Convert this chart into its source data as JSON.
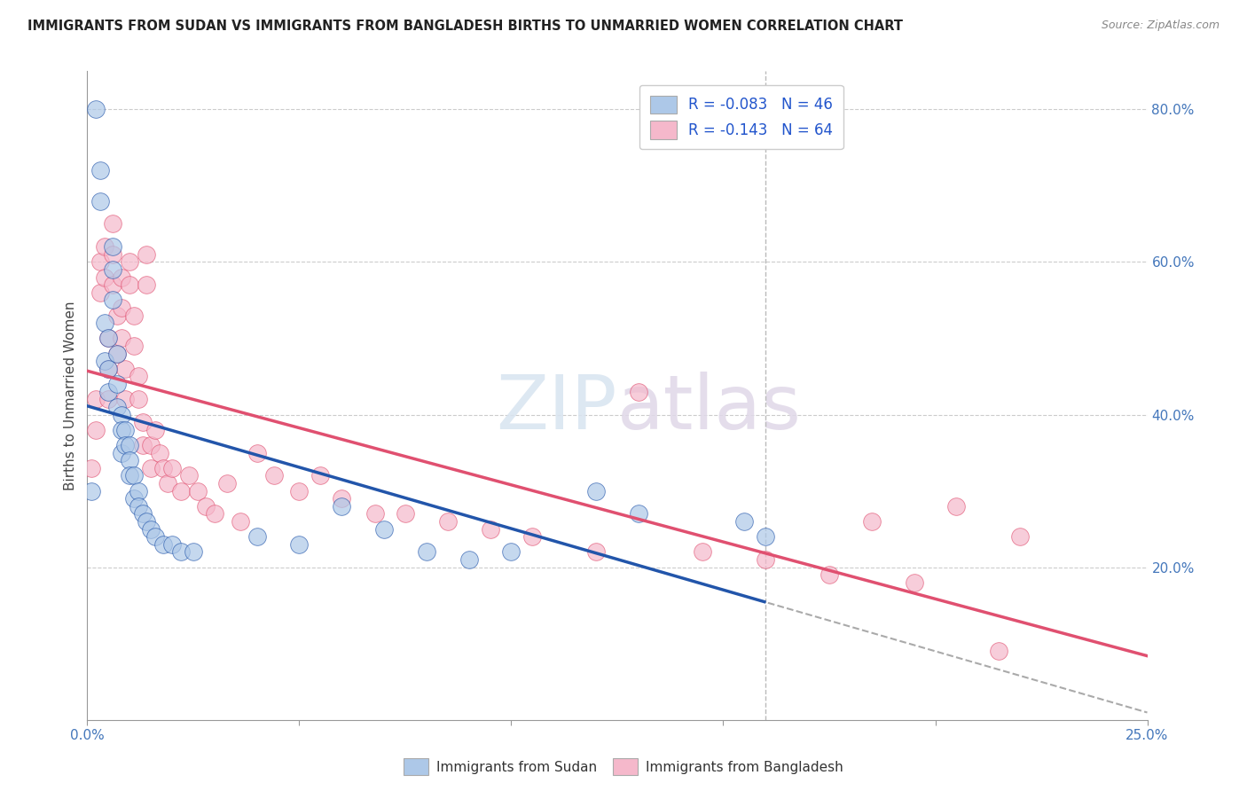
{
  "title": "IMMIGRANTS FROM SUDAN VS IMMIGRANTS FROM BANGLADESH BIRTHS TO UNMARRIED WOMEN CORRELATION CHART",
  "source": "Source: ZipAtlas.com",
  "ylabel": "Births to Unmarried Women",
  "xlim": [
    0.0,
    0.25
  ],
  "ylim": [
    0.0,
    0.85
  ],
  "xtick_values": [
    0.0,
    0.05,
    0.1,
    0.15,
    0.2,
    0.25
  ],
  "xtick_edge_labels_only": [
    "0.0%",
    "",
    "",
    "",
    "",
    "25.0%"
  ],
  "ytick_labels": [
    "20.0%",
    "40.0%",
    "60.0%",
    "80.0%"
  ],
  "ytick_values": [
    0.2,
    0.4,
    0.6,
    0.8
  ],
  "legend_r_sudan": "-0.083",
  "legend_n_sudan": "46",
  "legend_r_bangladesh": "-0.143",
  "legend_n_bangladesh": "64",
  "color_sudan": "#adc8e8",
  "color_bangladesh": "#f5b8cb",
  "line_color_sudan": "#2255aa",
  "line_color_bangladesh": "#e05070",
  "sudan_line_end_x": 0.13,
  "sudan_x": [
    0.001,
    0.002,
    0.003,
    0.003,
    0.004,
    0.004,
    0.005,
    0.005,
    0.005,
    0.006,
    0.006,
    0.006,
    0.007,
    0.007,
    0.007,
    0.008,
    0.008,
    0.008,
    0.009,
    0.009,
    0.01,
    0.01,
    0.01,
    0.011,
    0.011,
    0.012,
    0.012,
    0.013,
    0.014,
    0.015,
    0.016,
    0.018,
    0.02,
    0.022,
    0.025,
    0.04,
    0.05,
    0.06,
    0.07,
    0.08,
    0.09,
    0.1,
    0.12,
    0.13,
    0.155,
    0.16
  ],
  "sudan_y": [
    0.3,
    0.8,
    0.72,
    0.68,
    0.52,
    0.47,
    0.5,
    0.46,
    0.43,
    0.62,
    0.59,
    0.55,
    0.48,
    0.44,
    0.41,
    0.4,
    0.38,
    0.35,
    0.38,
    0.36,
    0.36,
    0.34,
    0.32,
    0.32,
    0.29,
    0.3,
    0.28,
    0.27,
    0.26,
    0.25,
    0.24,
    0.23,
    0.23,
    0.22,
    0.22,
    0.24,
    0.23,
    0.28,
    0.25,
    0.22,
    0.21,
    0.22,
    0.3,
    0.27,
    0.26,
    0.24
  ],
  "bangladesh_x": [
    0.001,
    0.002,
    0.002,
    0.003,
    0.003,
    0.004,
    0.004,
    0.005,
    0.005,
    0.005,
    0.006,
    0.006,
    0.006,
    0.007,
    0.007,
    0.008,
    0.008,
    0.008,
    0.009,
    0.009,
    0.01,
    0.01,
    0.011,
    0.011,
    0.012,
    0.012,
    0.013,
    0.013,
    0.014,
    0.014,
    0.015,
    0.015,
    0.016,
    0.017,
    0.018,
    0.019,
    0.02,
    0.022,
    0.024,
    0.026,
    0.028,
    0.03,
    0.033,
    0.036,
    0.04,
    0.044,
    0.05,
    0.055,
    0.06,
    0.068,
    0.075,
    0.085,
    0.095,
    0.105,
    0.12,
    0.13,
    0.145,
    0.16,
    0.175,
    0.185,
    0.195,
    0.205,
    0.215,
    0.22
  ],
  "bangladesh_y": [
    0.33,
    0.42,
    0.38,
    0.6,
    0.56,
    0.62,
    0.58,
    0.5,
    0.46,
    0.42,
    0.65,
    0.61,
    0.57,
    0.53,
    0.48,
    0.58,
    0.54,
    0.5,
    0.46,
    0.42,
    0.6,
    0.57,
    0.53,
    0.49,
    0.45,
    0.42,
    0.39,
    0.36,
    0.61,
    0.57,
    0.36,
    0.33,
    0.38,
    0.35,
    0.33,
    0.31,
    0.33,
    0.3,
    0.32,
    0.3,
    0.28,
    0.27,
    0.31,
    0.26,
    0.35,
    0.32,
    0.3,
    0.32,
    0.29,
    0.27,
    0.27,
    0.26,
    0.25,
    0.24,
    0.22,
    0.43,
    0.22,
    0.21,
    0.19,
    0.26,
    0.18,
    0.28,
    0.09,
    0.24
  ]
}
